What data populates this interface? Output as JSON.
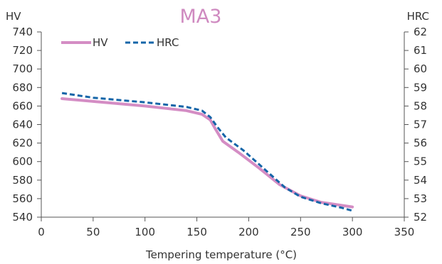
{
  "chart_data": {
    "type": "line",
    "title": "MA3",
    "title_color": "#cf8ac0",
    "xlabel": "Tempering temperature (°C)",
    "ylabel_left": "HV",
    "ylabel_right": "HRC",
    "xlim": [
      0,
      350
    ],
    "ylim_left": [
      540,
      740
    ],
    "ylim_right": [
      52,
      62
    ],
    "x_ticks": [
      0,
      50,
      100,
      150,
      200,
      250,
      300,
      350
    ],
    "y_left_ticks": [
      540,
      560,
      580,
      600,
      620,
      640,
      660,
      680,
      700,
      720,
      740
    ],
    "y_right_ticks": [
      52,
      53,
      54,
      55,
      56,
      57,
      58,
      59,
      60,
      61,
      62
    ],
    "grid": "none",
    "legend_placement": "top-left",
    "series": [
      {
        "name": "HV",
        "axis": "left",
        "color": "#d48dc4",
        "style": "solid",
        "points": [
          [
            20,
            668
          ],
          [
            50,
            665
          ],
          [
            100,
            660
          ],
          [
            140,
            655
          ],
          [
            155,
            651
          ],
          [
            163,
            645
          ],
          [
            168,
            635
          ],
          [
            175,
            622
          ],
          [
            190,
            610
          ],
          [
            210,
            593
          ],
          [
            230,
            575
          ],
          [
            250,
            563
          ],
          [
            270,
            556
          ],
          [
            300,
            551
          ]
        ]
      },
      {
        "name": "HRC",
        "axis": "right",
        "color": "#1565a8",
        "style": "dashed",
        "points": [
          [
            20,
            58.7
          ],
          [
            50,
            58.45
          ],
          [
            100,
            58.2
          ],
          [
            140,
            57.95
          ],
          [
            155,
            57.75
          ],
          [
            163,
            57.4
          ],
          [
            170,
            56.85
          ],
          [
            178,
            56.3
          ],
          [
            195,
            55.6
          ],
          [
            215,
            54.6
          ],
          [
            235,
            53.6
          ],
          [
            250,
            53.1
          ],
          [
            270,
            52.75
          ],
          [
            290,
            52.5
          ],
          [
            300,
            52.35
          ]
        ]
      }
    ]
  }
}
